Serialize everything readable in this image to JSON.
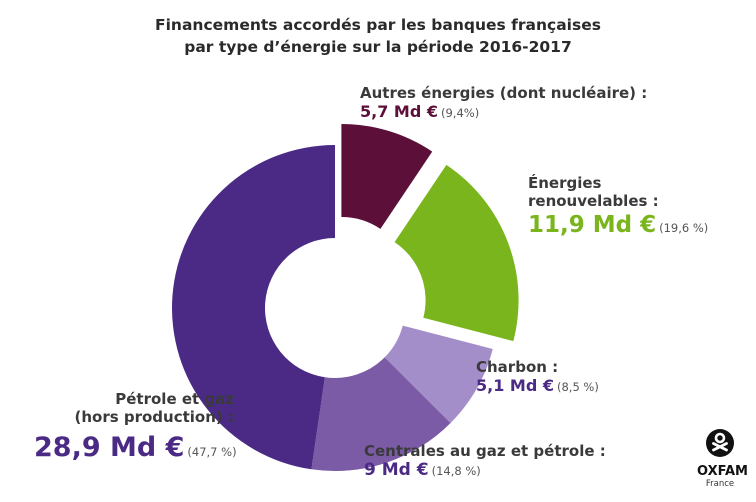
{
  "chart_data": {
    "type": "pie",
    "title_lines": [
      "Financements accordés par les banques françaises",
      "par type d’énergie sur la période 2016-2017"
    ],
    "slices": [
      {
        "label_lines": [
          "Autres énergies (dont nucléaire) :"
        ],
        "value": 5.7,
        "value_text": "5,7 Md €",
        "percent": 9.4,
        "percent_text": "(9,4%)",
        "color": "#5c0f38"
      },
      {
        "label_lines": [
          "Énergies",
          "renouvelables :"
        ],
        "value": 11.9,
        "value_text": "11,9 Md €",
        "percent": 19.6,
        "percent_text": "(19,6 %)",
        "color": "#7ab51d"
      },
      {
        "label_lines": [
          "Charbon :"
        ],
        "value": 5.1,
        "value_text": "5,1 Md €",
        "percent": 8.5,
        "percent_text": "(8,5 %)",
        "color": "#a38ec9"
      },
      {
        "label_lines": [
          "Centrales au gaz et pétrole :"
        ],
        "value": 9,
        "value_text": "9 Md €",
        "percent": 14.8,
        "percent_text": "(14,8 %)",
        "color": "#7b5aa6"
      },
      {
        "label_lines": [
          "Pétrole et gaz",
          "(hors production) :"
        ],
        "value": 28.9,
        "value_text": "28,9 Md €",
        "percent": 47.7,
        "percent_text": "(47,7 %)",
        "color": "#4b2a85"
      }
    ],
    "unit": "Md €"
  },
  "logo": {
    "brand": "OXFAM",
    "country": "France",
    "icon": "oxfam-logo-icon"
  }
}
